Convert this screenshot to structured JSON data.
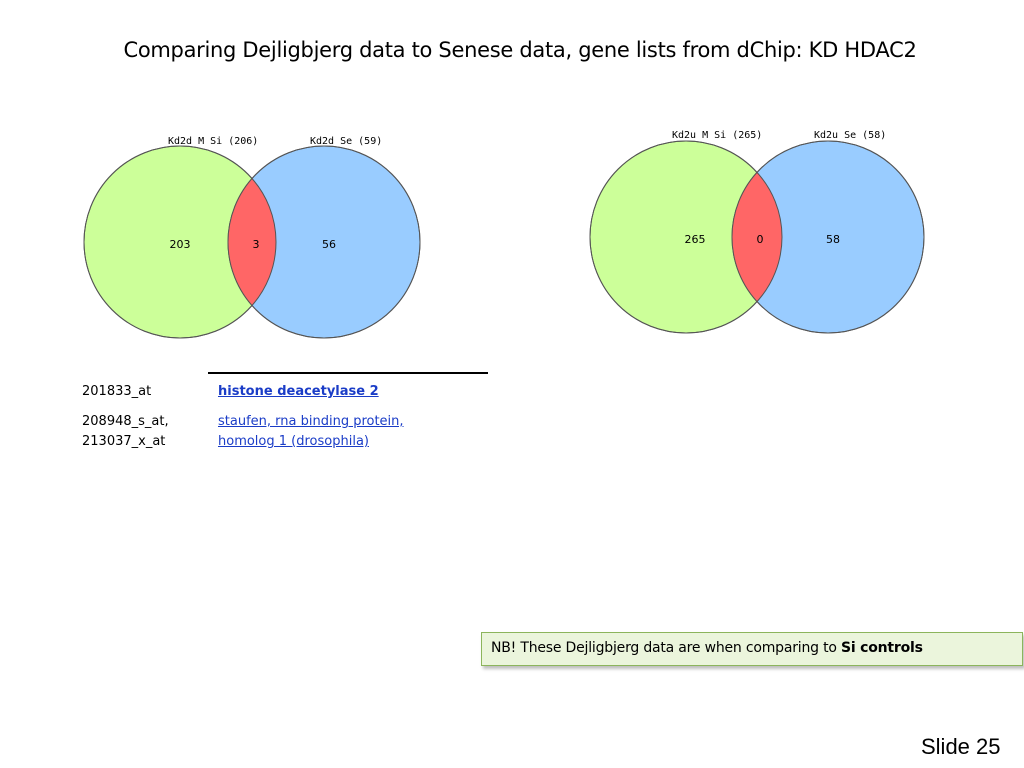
{
  "title": "Comparing Dejligbjerg data to Senese data, gene lists from dChip: KD HDAC2",
  "venn_left": {
    "label_a": "Kd2d M Si (206)",
    "label_b": "Kd2d Se (59)",
    "only_a": "203",
    "overlap": "3",
    "only_b": "56",
    "colors": {
      "a": "#ccff99",
      "b": "#99ccff",
      "overlap": "#ff6666"
    }
  },
  "venn_right": {
    "label_a": "Kd2u M Si (265)",
    "label_b": "Kd2u Se (58)",
    "only_a": "265",
    "overlap": "0",
    "only_b": "58",
    "colors": {
      "a": "#ccff99",
      "b": "#99ccff",
      "overlap": "#ff6666"
    }
  },
  "gene_table": {
    "rows": [
      {
        "id": "201833_at",
        "name": "histone deacetylase 2"
      },
      {
        "id": "208948_s_at,\n213037_x_at",
        "name": "staufen, rna binding protein,\nhomolog 1 (drosophila)"
      }
    ]
  },
  "note": {
    "text": "NB! These Dejligbjerg data are when comparing to ",
    "emphasis": "Si controls"
  },
  "slide_number": "Slide 25"
}
